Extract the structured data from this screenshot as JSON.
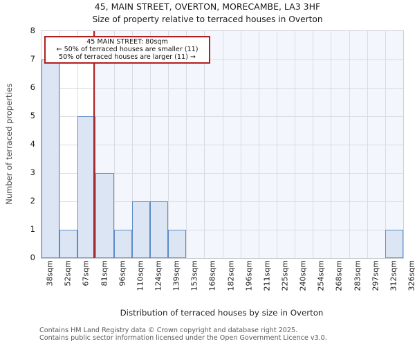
{
  "chart_data": {
    "type": "bar",
    "title": "45, MAIN STREET, OVERTON, MORECAMBE, LA3 3HF",
    "subtitle": "Size of property relative to terraced houses in Overton",
    "xlabel": "Distribution of terraced houses by size in Overton",
    "ylabel": "Number of terraced properties",
    "x_tick_labels": [
      "38sqm",
      "52sqm",
      "67sqm",
      "81sqm",
      "96sqm",
      "110sqm",
      "124sqm",
      "139sqm",
      "153sqm",
      "168sqm",
      "182sqm",
      "196sqm",
      "211sqm",
      "225sqm",
      "240sqm",
      "254sqm",
      "268sqm",
      "283sqm",
      "297sqm",
      "312sqm",
      "326sqm"
    ],
    "bin_edges_sqm": [
      38,
      52,
      67,
      81,
      96,
      110,
      124,
      139,
      153,
      168,
      182,
      196,
      211,
      225,
      240,
      254,
      268,
      283,
      297,
      312,
      326
    ],
    "values": [
      7,
      1,
      5,
      3,
      1,
      2,
      2,
      1,
      0,
      0,
      0,
      0,
      0,
      0,
      0,
      0,
      0,
      0,
      0,
      1
    ],
    "ylim": [
      0,
      8
    ],
    "y_ticks": [
      0,
      1,
      2,
      3,
      4,
      5,
      6,
      7,
      8
    ],
    "grid": true,
    "legend": "none",
    "marker": {
      "sqm": 80
    },
    "shaded_region": {
      "from_sqm": 80,
      "to_sqm": 326
    },
    "colors": {
      "bar_fill": "#dbe5f4",
      "bar_edge": "#5b8ac6",
      "marker_red": "#b01e1e",
      "shade": "#f3f6fc",
      "grid": "#d8dbe0"
    }
  },
  "annotation": {
    "line1": "45 MAIN STREET: 80sqm",
    "line2": "← 50% of terraced houses are smaller (11)",
    "line3": "50% of terraced houses are larger (11) →"
  },
  "footer": {
    "line1": "Contains HM Land Registry data © Crown copyright and database right 2025.",
    "line2": "Contains public sector information licensed under the Open Government Licence v3.0."
  }
}
